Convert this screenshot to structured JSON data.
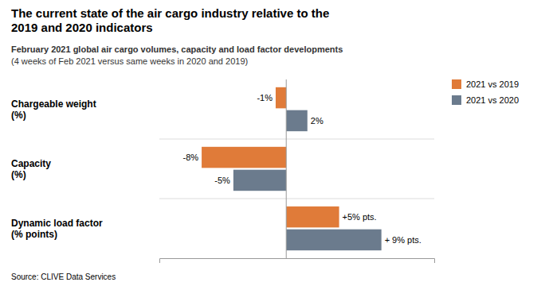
{
  "chart_data": {
    "type": "bar",
    "orientation": "horizontal",
    "title": "The current state of the air cargo industry relative to the\n2019 and 2020 indicators",
    "subtitle": [
      "February 2021 global air cargo volumes, capacity and load factor developments",
      "(4 weeks of Feb 2021 versus same weeks in 2020 and 2019)"
    ],
    "source": "Source: CLIVE Data Services",
    "categories": [
      "Chargeable weight\n(%)",
      "Capacity\n(%)",
      "Dynamic load factor\n(% points)"
    ],
    "series": [
      {
        "name": "2021 vs 2019",
        "color": "#E07B39",
        "values": [
          -1,
          -8,
          5
        ],
        "value_labels": [
          "-1%",
          "-8%",
          "+5% pts."
        ]
      },
      {
        "name": "2021 vs 2020",
        "color": "#6B7B8D",
        "values": [
          2,
          -5,
          9
        ],
        "value_labels": [
          "2%",
          "-5%",
          "+ 9% pts."
        ]
      }
    ],
    "xlim": [
      -12,
      14
    ],
    "tick_labels": false,
    "data_labels": true,
    "grid": false,
    "legend": "upper right"
  }
}
